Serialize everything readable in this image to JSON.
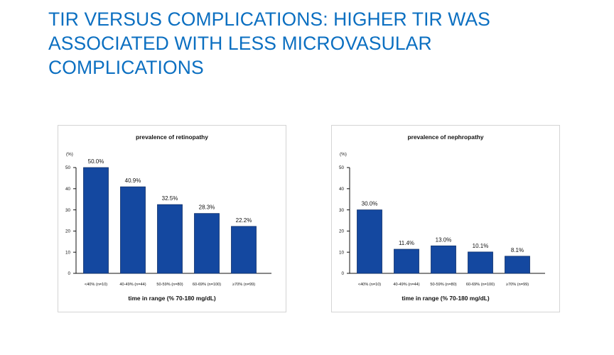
{
  "slide": {
    "title": "TIR VERSUS COMPLICATIONS: HIGHER TIR WAS ASSOCIATED WITH LESS MICROVASULAR COMPLICATIONS"
  },
  "colors": {
    "title": "#0b6fc1",
    "bar": "#1448a0",
    "bar_edge": "#0d2f6b"
  },
  "chart_data": [
    {
      "type": "bar",
      "title": "prevalence of retinopathy",
      "unit_label": "(%)",
      "xlabel": "time in range (% 70-180 mg/dL)",
      "ylabel": "",
      "ylim": [
        0,
        50
      ],
      "yticks": [
        0,
        10,
        20,
        30,
        40,
        50
      ],
      "categories": [
        "<40% (n=10)",
        "40-49% (n=44)",
        "50-59% (n=80)",
        "60-69% (n=100)",
        "≥70% (n=99)"
      ],
      "values": [
        50.0,
        40.9,
        32.5,
        28.3,
        22.2
      ],
      "value_labels": [
        "50.0%",
        "40.9%",
        "32.5%",
        "28.3%",
        "22.2%"
      ],
      "grid": false,
      "legend": "none"
    },
    {
      "type": "bar",
      "title": "prevalence of nephropathy",
      "unit_label": "(%)",
      "xlabel": "time in range (% 70-180 mg/dL)",
      "ylabel": "",
      "ylim": [
        0,
        50
      ],
      "yticks": [
        0,
        10,
        20,
        30,
        40,
        50
      ],
      "categories": [
        "<40% (n=10)",
        "40-49% (n=44)",
        "50-59% (n=80)",
        "60-69% (n=100)",
        "≥70% (n=99)"
      ],
      "values": [
        30.0,
        11.4,
        13.0,
        10.1,
        8.1
      ],
      "value_labels": [
        "30.0%",
        "11.4%",
        "13.0%",
        "10.1%",
        "8.1%"
      ],
      "grid": false,
      "legend": "none"
    }
  ]
}
